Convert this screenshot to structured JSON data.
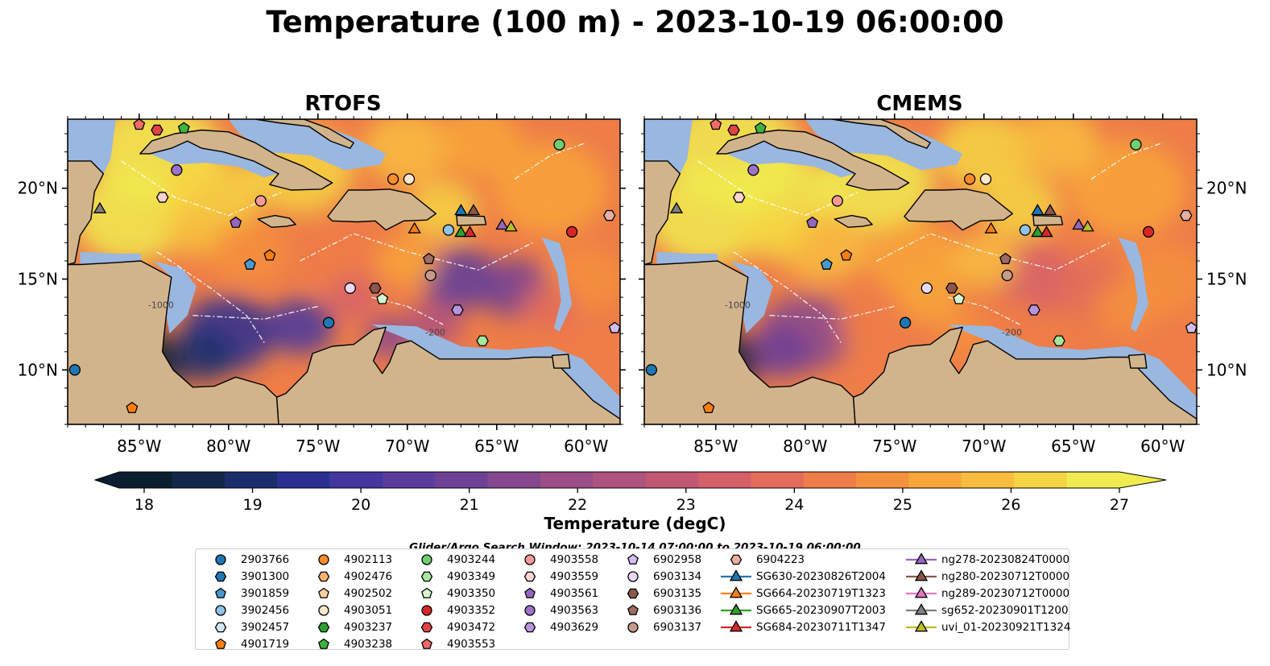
{
  "title": "Temperature (100 m) - 2023-10-19 06:00:00",
  "panels": [
    {
      "title": "RTOFS"
    },
    {
      "title": "CMEMS"
    }
  ],
  "map": {
    "lon_ticks": [
      "85°W",
      "80°W",
      "75°W",
      "70°W",
      "65°W",
      "60°W"
    ],
    "lat_ticks": [
      "20°N",
      "15°N",
      "10°N"
    ],
    "contour_labels": [
      "-1000",
      "-200"
    ]
  },
  "colorbar": {
    "label": "Temperature (degC)",
    "ticks": [
      "18",
      "19",
      "20",
      "21",
      "22",
      "23",
      "24",
      "25",
      "26",
      "27"
    ],
    "colors": [
      "#0b1e2e",
      "#12264a",
      "#1c2d6b",
      "#2a3092",
      "#4336a0",
      "#5a3c9c",
      "#6e4194",
      "#85488e",
      "#9a4d86",
      "#ae527e",
      "#c25773",
      "#d5606a",
      "#e36d5a",
      "#ee7d48",
      "#f5913c",
      "#f8a63a",
      "#f8bd3e",
      "#f6d542",
      "#f0ec4f"
    ],
    "ocean_deep": "#1a1f4f",
    "land": "#d2b48c",
    "shelf": "#9ab7e0"
  },
  "search_window": "Glider/Argo Search Window: 2023-10-14 07:00:00 to 2023-10-19 06:00:00",
  "legend": {
    "columns": [
      [
        {
          "label": "2903766",
          "marker": "circle",
          "color": "#1f77b4"
        },
        {
          "label": "3901300",
          "marker": "hexagon",
          "color": "#1f77b4"
        },
        {
          "label": "3901859",
          "marker": "pentagon",
          "color": "#4b98cf"
        },
        {
          "label": "3902456",
          "marker": "circle",
          "color": "#8ec3ea"
        },
        {
          "label": "3902457",
          "marker": "hexagon",
          "color": "#cfe8f7"
        },
        {
          "label": "4901719",
          "marker": "pentagon",
          "color": "#ff7f0e"
        }
      ],
      [
        {
          "label": "4902113",
          "marker": "circle",
          "color": "#ff8c2a"
        },
        {
          "label": "4902476",
          "marker": "hexagon",
          "color": "#ffb170"
        },
        {
          "label": "4902502",
          "marker": "pentagon",
          "color": "#ffcfa0"
        },
        {
          "label": "4903051",
          "marker": "circle",
          "color": "#ffe8cf"
        },
        {
          "label": "4903237",
          "marker": "hexagon",
          "color": "#2ca02c"
        },
        {
          "label": "4903238",
          "marker": "pentagon",
          "color": "#3cb43c"
        }
      ],
      [
        {
          "label": "4903244",
          "marker": "circle",
          "color": "#6fcf6f"
        },
        {
          "label": "4903349",
          "marker": "hexagon",
          "color": "#a8e6a0"
        },
        {
          "label": "4903350",
          "marker": "pentagon",
          "color": "#d7f5cf"
        },
        {
          "label": "4903352",
          "marker": "circle",
          "color": "#d62728"
        },
        {
          "label": "4903472",
          "marker": "hexagon",
          "color": "#e04444"
        },
        {
          "label": "4903553",
          "marker": "pentagon",
          "color": "#f06a6a"
        }
      ],
      [
        {
          "label": "4903558",
          "marker": "circle",
          "color": "#f59a9a"
        },
        {
          "label": "4903559",
          "marker": "hexagon",
          "color": "#fcd2d2"
        },
        {
          "label": "4903561",
          "marker": "pentagon",
          "color": "#9467bd"
        },
        {
          "label": "4903563",
          "marker": "circle",
          "color": "#9d72c8"
        },
        {
          "label": "4903629",
          "marker": "hexagon",
          "color": "#b694dc"
        }
      ],
      [
        {
          "label": "6902958",
          "marker": "pentagon",
          "color": "#d3bdf0"
        },
        {
          "label": "6903134",
          "marker": "circle",
          "color": "#ead8fb"
        },
        {
          "label": "6903135",
          "marker": "hexagon",
          "color": "#8c564b"
        },
        {
          "label": "6903136",
          "marker": "pentagon",
          "color": "#9e6b5f"
        },
        {
          "label": "6903137",
          "marker": "circle",
          "color": "#c49c89"
        }
      ],
      [
        {
          "label": "6904223",
          "marker": "hexagon",
          "color": "#e6b0a0"
        },
        {
          "label": "SG630-20230826T2004",
          "marker": "triangle",
          "color": "#1f77b4"
        },
        {
          "label": "SG664-20230719T1323",
          "marker": "triangle",
          "color": "#ff7f0e"
        },
        {
          "label": "SG665-20230907T2003",
          "marker": "triangle",
          "color": "#2ca02c"
        },
        {
          "label": "SG684-20230711T1347",
          "marker": "triangle",
          "color": "#d62728"
        }
      ],
      [
        {
          "label": "ng278-20230824T0000",
          "marker": "triangle",
          "color": "#9467bd"
        },
        {
          "label": "ng280-20230712T0000",
          "marker": "triangle",
          "color": "#8c564b"
        },
        {
          "label": "ng289-20230712T0000",
          "marker": "triangle",
          "color": "#e377c2"
        },
        {
          "label": "sg652-20230901T1200",
          "marker": "triangle",
          "color": "#7f7f7f"
        },
        {
          "label": "uvi_01-20230921T1324",
          "marker": "triangle",
          "color": "#bcbd22"
        }
      ]
    ]
  },
  "observations": [
    {
      "lon": -85.0,
      "lat": 23.5,
      "marker": "pentagon",
      "color": "#f06a6a"
    },
    {
      "lon": -84.0,
      "lat": 23.2,
      "marker": "hexagon",
      "color": "#e04444"
    },
    {
      "lon": -82.5,
      "lat": 23.3,
      "marker": "pentagon",
      "color": "#3cb43c"
    },
    {
      "lon": -61.5,
      "lat": 22.4,
      "marker": "circle",
      "color": "#6fcf6f"
    },
    {
      "lon": -82.9,
      "lat": 21.0,
      "marker": "circle",
      "color": "#9d72c8"
    },
    {
      "lon": -70.8,
      "lat": 20.5,
      "marker": "circle",
      "color": "#ff8c2a"
    },
    {
      "lon": -69.9,
      "lat": 20.5,
      "marker": "circle",
      "color": "#ffe8cf"
    },
    {
      "lon": -83.7,
      "lat": 19.5,
      "marker": "hexagon",
      "color": "#fcd2d2"
    },
    {
      "lon": -78.2,
      "lat": 19.3,
      "marker": "circle",
      "color": "#f59a9a"
    },
    {
      "lon": -87.2,
      "lat": 18.9,
      "marker": "triangle",
      "color": "#7f7f7f"
    },
    {
      "lon": -58.7,
      "lat": 18.5,
      "marker": "hexagon",
      "color": "#e6b0a0"
    },
    {
      "lon": -79.6,
      "lat": 18.1,
      "marker": "pentagon",
      "color": "#9467bd"
    },
    {
      "lon": -69.6,
      "lat": 17.8,
      "marker": "triangle",
      "color": "#ff7f0e"
    },
    {
      "lon": -67.7,
      "lat": 17.7,
      "marker": "circle",
      "color": "#8ec3ea"
    },
    {
      "lon": -67.0,
      "lat": 18.8,
      "marker": "triangle",
      "color": "#1f77b4"
    },
    {
      "lon": -66.3,
      "lat": 18.8,
      "marker": "triangle",
      "color": "#8c564b"
    },
    {
      "lon": -67.0,
      "lat": 17.6,
      "marker": "triangle",
      "color": "#2ca02c"
    },
    {
      "lon": -66.5,
      "lat": 17.6,
      "marker": "triangle",
      "color": "#d62728"
    },
    {
      "lon": -64.7,
      "lat": 18.0,
      "marker": "triangle",
      "color": "#9467bd"
    },
    {
      "lon": -64.2,
      "lat": 17.9,
      "marker": "triangle",
      "color": "#bcbd22"
    },
    {
      "lon": -60.8,
      "lat": 17.6,
      "marker": "circle",
      "color": "#d62728"
    },
    {
      "lon": -77.7,
      "lat": 16.3,
      "marker": "pentagon",
      "color": "#ff7f0e"
    },
    {
      "lon": -78.8,
      "lat": 15.8,
      "marker": "pentagon",
      "color": "#4b98cf"
    },
    {
      "lon": -68.8,
      "lat": 16.1,
      "marker": "pentagon",
      "color": "#9e6b5f"
    },
    {
      "lon": -68.7,
      "lat": 15.2,
      "marker": "circle",
      "color": "#c49c89"
    },
    {
      "lon": -73.2,
      "lat": 14.5,
      "marker": "circle",
      "color": "#ead8fb"
    },
    {
      "lon": -71.8,
      "lat": 14.5,
      "marker": "hexagon",
      "color": "#8c564b"
    },
    {
      "lon": -71.4,
      "lat": 13.9,
      "marker": "pentagon",
      "color": "#d7f5cf"
    },
    {
      "lon": -67.2,
      "lat": 13.3,
      "marker": "hexagon",
      "color": "#b694dc"
    },
    {
      "lon": -74.4,
      "lat": 12.6,
      "marker": "circle",
      "color": "#1f77b4"
    },
    {
      "lon": -58.4,
      "lat": 12.3,
      "marker": "pentagon",
      "color": "#d3bdf0"
    },
    {
      "lon": -65.8,
      "lat": 11.6,
      "marker": "hexagon",
      "color": "#a8e6a0"
    },
    {
      "lon": -88.6,
      "lat": 10.0,
      "marker": "circle",
      "color": "#1f77b4"
    },
    {
      "lon": -85.4,
      "lat": 7.9,
      "marker": "pentagon",
      "color": "#ff7f0e"
    }
  ]
}
